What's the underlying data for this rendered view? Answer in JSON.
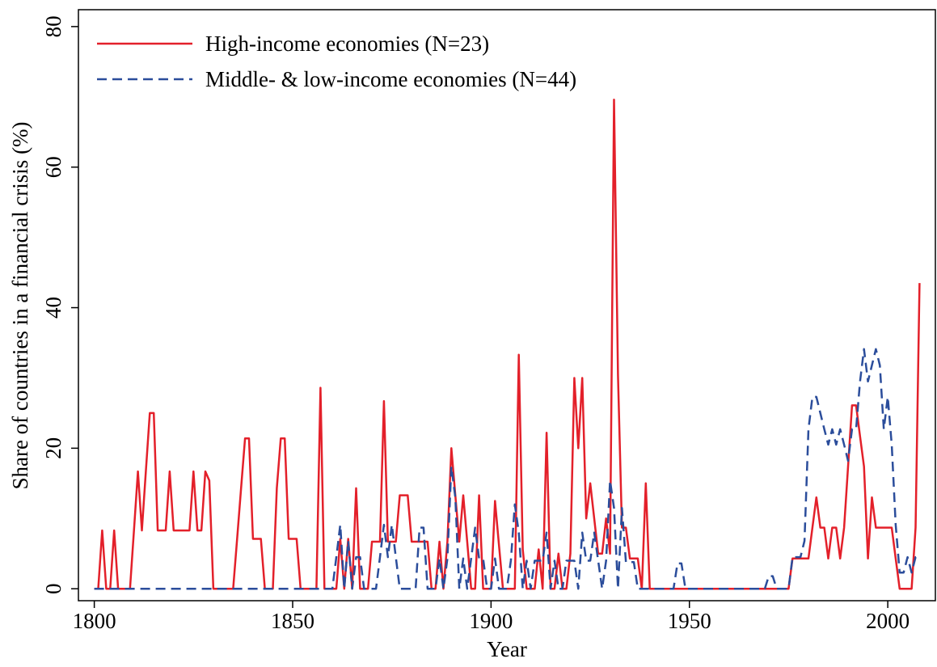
{
  "chart_data": {
    "type": "line",
    "xlabel": "Year",
    "ylabel": "Share of countries in a financial crisis (%)",
    "x": [
      1800,
      1801,
      1802,
      1803,
      1804,
      1805,
      1806,
      1807,
      1808,
      1809,
      1810,
      1811,
      1812,
      1813,
      1814,
      1815,
      1816,
      1817,
      1818,
      1819,
      1820,
      1821,
      1822,
      1823,
      1824,
      1825,
      1826,
      1827,
      1828,
      1829,
      1830,
      1831,
      1832,
      1833,
      1834,
      1835,
      1836,
      1837,
      1838,
      1839,
      1840,
      1841,
      1842,
      1843,
      1844,
      1845,
      1846,
      1847,
      1848,
      1849,
      1850,
      1851,
      1852,
      1853,
      1854,
      1855,
      1856,
      1857,
      1858,
      1859,
      1860,
      1861,
      1862,
      1863,
      1864,
      1865,
      1866,
      1867,
      1868,
      1869,
      1870,
      1871,
      1872,
      1873,
      1874,
      1875,
      1876,
      1877,
      1878,
      1879,
      1880,
      1881,
      1882,
      1883,
      1884,
      1885,
      1886,
      1887,
      1888,
      1889,
      1890,
      1891,
      1892,
      1893,
      1894,
      1895,
      1896,
      1897,
      1898,
      1899,
      1900,
      1901,
      1902,
      1903,
      1904,
      1905,
      1906,
      1907,
      1908,
      1909,
      1910,
      1911,
      1912,
      1913,
      1914,
      1915,
      1916,
      1917,
      1918,
      1919,
      1920,
      1921,
      1922,
      1923,
      1924,
      1925,
      1926,
      1927,
      1928,
      1929,
      1930,
      1931,
      1932,
      1933,
      1934,
      1935,
      1936,
      1937,
      1938,
      1939,
      1940,
      1941,
      1942,
      1943,
      1944,
      1945,
      1946,
      1947,
      1948,
      1949,
      1950,
      1951,
      1952,
      1953,
      1954,
      1955,
      1956,
      1957,
      1958,
      1959,
      1960,
      1961,
      1962,
      1963,
      1964,
      1965,
      1966,
      1967,
      1968,
      1969,
      1970,
      1971,
      1972,
      1973,
      1974,
      1975,
      1976,
      1977,
      1978,
      1979,
      1980,
      1981,
      1982,
      1983,
      1984,
      1985,
      1986,
      1987,
      1988,
      1989,
      1990,
      1991,
      1992,
      1993,
      1994,
      1995,
      1996,
      1997,
      1998,
      1999,
      2000,
      2001,
      2002,
      2003,
      2004,
      2005,
      2006,
      2007,
      2008
    ],
    "series": [
      {
        "name": "High-income economies (N=23)",
        "color": "#e3202a",
        "dash": "solid",
        "values": [
          0,
          0,
          8.3,
          0,
          0,
          8.3,
          0,
          0,
          0,
          0,
          8.3,
          16.7,
          8.3,
          16.7,
          25,
          25,
          8.3,
          8.3,
          8.3,
          16.7,
          8.3,
          8.3,
          8.3,
          8.3,
          8.3,
          16.7,
          8.3,
          8.3,
          16.7,
          15.4,
          0,
          0,
          0,
          0,
          0,
          0,
          7.1,
          14.3,
          21.4,
          21.4,
          7.1,
          7.1,
          7.1,
          0,
          0,
          0,
          14.3,
          21.4,
          21.4,
          7.1,
          7.1,
          7.1,
          0,
          0,
          0,
          0,
          0,
          28.6,
          0,
          0,
          0,
          0,
          7.1,
          0,
          7.1,
          0,
          14.3,
          0,
          0,
          0,
          6.7,
          6.7,
          6.7,
          26.7,
          6.7,
          6.7,
          6.7,
          13.3,
          13.3,
          13.3,
          6.7,
          6.7,
          6.7,
          6.7,
          6.7,
          0,
          0,
          6.7,
          0,
          6.7,
          20,
          13.3,
          6.7,
          13.3,
          6.7,
          0,
          0,
          13.3,
          0,
          0,
          0,
          12.5,
          6.2,
          0,
          0,
          0,
          0,
          33.3,
          5.6,
          0,
          0,
          0,
          5.6,
          0,
          22.2,
          0,
          0,
          5,
          0,
          0,
          5,
          30,
          20,
          30,
          10,
          15,
          10,
          5,
          5,
          10,
          5,
          69.6,
          30.4,
          8.7,
          8.7,
          4.3,
          4.3,
          4.3,
          0,
          15,
          0,
          0,
          0,
          0,
          0,
          0,
          0,
          0,
          0,
          0,
          0,
          0,
          0,
          0,
          0,
          0,
          0,
          0,
          0,
          0,
          0,
          0,
          0,
          0,
          0,
          0,
          0,
          0,
          0,
          0,
          0,
          0,
          0,
          0,
          0,
          0,
          4.3,
          4.3,
          4.3,
          4.3,
          4.3,
          8.7,
          13,
          8.7,
          8.7,
          4.3,
          8.7,
          8.7,
          4.3,
          8.7,
          17.4,
          26.1,
          26.1,
          21.7,
          17.4,
          4.3,
          13,
          8.7,
          8.7,
          8.7,
          8.7,
          8.7,
          4.3,
          0,
          0,
          0,
          0,
          8.7,
          43.5
        ]
      },
      {
        "name": "Middle- & low-income economies (N=44)",
        "color": "#2b4d9b",
        "dash": "dashed",
        "values": [
          0,
          0,
          0,
          0,
          0,
          0,
          0,
          0,
          0,
          0,
          0,
          0,
          0,
          0,
          0,
          0,
          0,
          0,
          0,
          0,
          0,
          0,
          0,
          0,
          0,
          0,
          0,
          0,
          0,
          0,
          0,
          0,
          0,
          0,
          0,
          0,
          0,
          0,
          0,
          0,
          0,
          0,
          0,
          0,
          0,
          0,
          0,
          0,
          0,
          0,
          0,
          0,
          0,
          0,
          0,
          0,
          0,
          0,
          0,
          0,
          0,
          4.5,
          9.1,
          0,
          6.8,
          0,
          4.5,
          4.5,
          0,
          0,
          0,
          0,
          4.5,
          9.1,
          4.5,
          9.1,
          4.5,
          0,
          0,
          0,
          0,
          0,
          8.7,
          8.7,
          0,
          0,
          0,
          4.3,
          0,
          4.3,
          17.4,
          13,
          0,
          4.3,
          0,
          4.3,
          8.7,
          4.3,
          4.3,
          0,
          0,
          4.3,
          0,
          0,
          0,
          4,
          12,
          8,
          0,
          4,
          0,
          4,
          4,
          4,
          8,
          0,
          4,
          0,
          0,
          4,
          4,
          4,
          0,
          8,
          4,
          4,
          8,
          4,
          0,
          4,
          15.4,
          11.5,
          0,
          11.5,
          3.8,
          3.8,
          3.8,
          0,
          0,
          0,
          0,
          0,
          0,
          0,
          0,
          0,
          0,
          3.6,
          3.6,
          0,
          0,
          0,
          0,
          0,
          0,
          0,
          0,
          0,
          0,
          0,
          0,
          0,
          0,
          0,
          0,
          0,
          0,
          0,
          0,
          0,
          1.8,
          1.8,
          0,
          0,
          0,
          0,
          4.5,
          4.5,
          4.5,
          6.8,
          22.7,
          27.3,
          27.3,
          25,
          22.7,
          20.5,
          22.7,
          20.5,
          22.7,
          20.5,
          18.2,
          22.7,
          22.7,
          29.5,
          34.1,
          29.5,
          31.8,
          34.1,
          31.8,
          22.7,
          27.3,
          20.5,
          9.1,
          2.3,
          2.3,
          4.5,
          2.3,
          4.5,
          4.5
        ]
      }
    ],
    "xlim": [
      1796,
      2012
    ],
    "ylim": [
      -1.7,
      82.4
    ],
    "xticks": [
      1800,
      1850,
      1900,
      1950,
      2000
    ],
    "yticks": [
      0,
      20,
      40,
      60,
      80
    ],
    "grid": false,
    "legend": "upper left"
  }
}
